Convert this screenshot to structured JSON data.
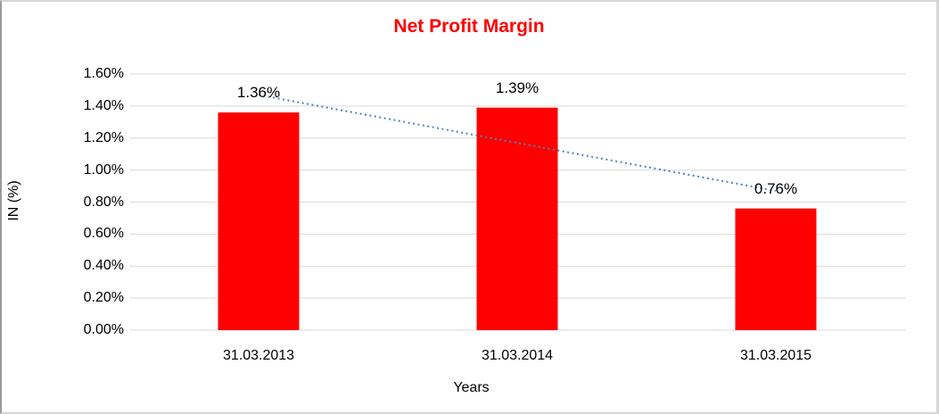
{
  "chart_data": {
    "type": "bar",
    "title": "Net Profit Margin",
    "categories": [
      "31.03.2013",
      "31.03.2014",
      "31.03.2015"
    ],
    "values": [
      1.36,
      1.39,
      0.76
    ],
    "data_labels": [
      "1.36%",
      "1.39%",
      "0.76%"
    ],
    "xlabel": "Years",
    "ylabel": "IN (%)",
    "ylim": [
      0,
      1.6
    ],
    "ytick_step": 0.2,
    "ytick_labels": [
      "0.00%",
      "0.20%",
      "0.40%",
      "0.60%",
      "0.80%",
      "1.00%",
      "1.20%",
      "1.40%",
      "1.60%"
    ],
    "grid": true,
    "legend_position": "none",
    "trendline": {
      "shape": "linear",
      "style": "dotted",
      "start_value": 1.47,
      "end_value": 0.87
    },
    "colors": {
      "bar": "#ff0000",
      "title": "#ff0000",
      "text": "#000000",
      "gridline": "#d9d9d9",
      "trendline": "#4f81bd",
      "background": "#ffffff"
    }
  }
}
